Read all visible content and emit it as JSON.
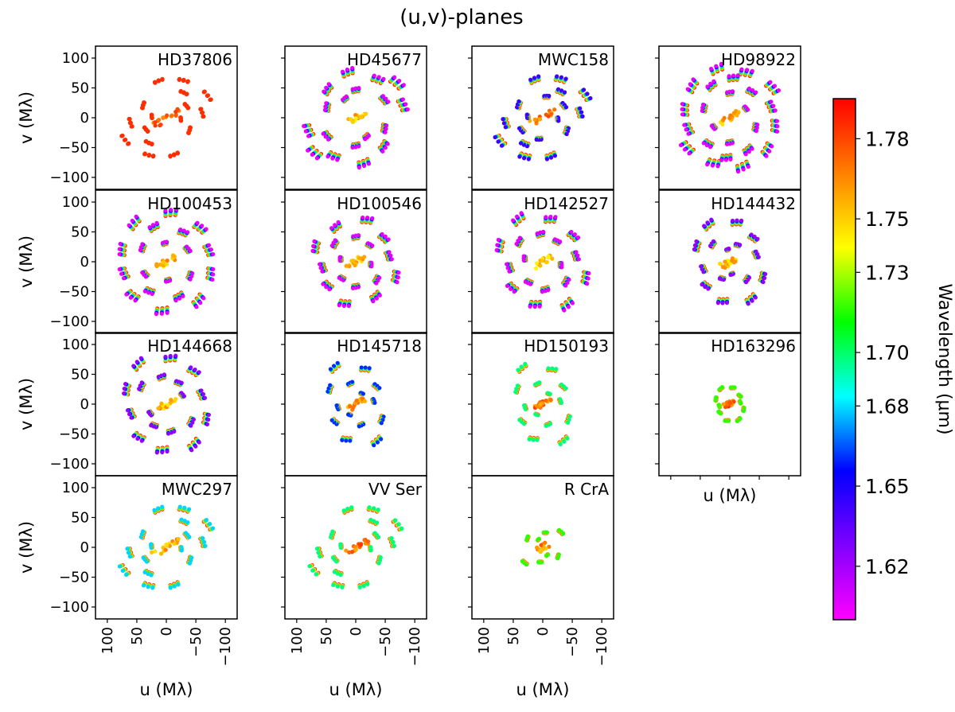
{
  "figure": {
    "title": "(u,v)-planes"
  },
  "chart_data": {
    "type": "scatter",
    "title": "(u,v)-planes",
    "xlabel": "u (Mλ)",
    "ylabel": "v (Mλ)",
    "xlim": [
      120,
      -120
    ],
    "ylim": [
      -120,
      120
    ],
    "xticks": [
      100,
      50,
      0,
      -50,
      -100
    ],
    "yticks": [
      100,
      50,
      0,
      -50,
      -100
    ],
    "tick_labels": [
      "100",
      "50",
      "0",
      "−50",
      "−100"
    ],
    "colorbar": {
      "label": "Wavelength (μm)",
      "range": [
        1.6,
        1.795
      ],
      "ticks": [
        1.62,
        1.65,
        1.68,
        1.7,
        1.73,
        1.75,
        1.78
      ],
      "tick_labels": [
        "1.62",
        "1.65",
        "1.68",
        "1.70",
        "1.73",
        "1.75",
        "1.78"
      ],
      "colormap_stops": [
        "#ff00ff",
        "#8000ff",
        "#0000ff",
        "#00ffff",
        "#00ff00",
        "#ffff00",
        "#ff8000",
        "#ff0000"
      ]
    },
    "panels": [
      {
        "name": "HD37806",
        "arms": [
          [
            45,
            28
          ],
          [
            64,
            78
          ],
          [
            70,
            115
          ],
          [
            40,
            150
          ],
          [
            25,
            185
          ],
          [
            80,
            332
          ],
          [
            52,
            305
          ],
          [
            62,
            352
          ]
        ],
        "radial": 58,
        "wl_spread": 0.2,
        "base_wl": 1.785
      },
      {
        "name": "HD45677",
        "arms": [
          [
            50,
            20
          ],
          [
            65,
            45
          ],
          [
            75,
            80
          ],
          [
            72,
            120
          ],
          [
            80,
            165
          ],
          [
            55,
            148
          ],
          [
            88,
            140
          ],
          [
            45,
            90
          ],
          [
            35,
            60
          ]
        ],
        "radial": 40,
        "wl_spread": 1.0,
        "base_wl": 1.77
      },
      {
        "name": "MWC158",
        "arms": [
          [
            45,
            28
          ],
          [
            64,
            78
          ],
          [
            70,
            115
          ],
          [
            40,
            150
          ],
          [
            25,
            185
          ],
          [
            80,
            332
          ],
          [
            52,
            305
          ],
          [
            62,
            352
          ],
          [
            35,
            100
          ]
        ],
        "radial": 55,
        "wl_spread": 0.8,
        "base_wl": 1.78
      },
      {
        "name": "HD98922",
        "arms": [
          [
            75,
            10
          ],
          [
            80,
            40
          ],
          [
            82,
            75
          ],
          [
            78,
            110
          ],
          [
            85,
            145
          ],
          [
            70,
            165
          ],
          [
            60,
            60
          ],
          [
            55,
            130
          ],
          [
            45,
            20
          ],
          [
            40,
            90
          ],
          [
            30,
            150
          ],
          [
            65,
            95
          ]
        ],
        "radial": 40,
        "wl_spread": 1.0,
        "base_wl": 1.77
      },
      {
        "name": "HD100453",
        "arms": [
          [
            75,
            15
          ],
          [
            82,
            50
          ],
          [
            80,
            95
          ],
          [
            78,
            135
          ],
          [
            72,
            165
          ],
          [
            60,
            70
          ],
          [
            55,
            120
          ],
          [
            45,
            30
          ],
          [
            40,
            150
          ],
          [
            30,
            85
          ]
        ],
        "radial": 40,
        "wl_spread": 1.0,
        "base_wl": 1.77
      },
      {
        "name": "HD100546",
        "arms": [
          [
            70,
            20
          ],
          [
            65,
            60
          ],
          [
            70,
            105
          ],
          [
            60,
            140
          ],
          [
            55,
            170
          ],
          [
            45,
            40
          ],
          [
            40,
            90
          ],
          [
            35,
            130
          ],
          [
            25,
            10
          ]
        ],
        "radial": 40,
        "wl_spread": 1.0,
        "base_wl": 1.77
      },
      {
        "name": "HD142527",
        "arms": [
          [
            75,
            20
          ],
          [
            80,
            60
          ],
          [
            70,
            100
          ],
          [
            65,
            140
          ],
          [
            55,
            170
          ],
          [
            50,
            40
          ],
          [
            45,
            85
          ],
          [
            40,
            125
          ],
          [
            30,
            10
          ]
        ],
        "radial": 40,
        "wl_spread": 1.0,
        "base_wl": 1.77
      },
      {
        "name": "HD144432",
        "arms": [
          [
            60,
            25
          ],
          [
            70,
            60
          ],
          [
            65,
            100
          ],
          [
            55,
            135
          ],
          [
            45,
            165
          ],
          [
            40,
            45
          ],
          [
            30,
            115
          ],
          [
            20,
            80
          ]
        ],
        "radial": 40,
        "wl_spread": 0.9,
        "base_wl": 1.77
      },
      {
        "name": "HD144668",
        "arms": [
          [
            70,
            20
          ],
          [
            80,
            55
          ],
          [
            75,
            95
          ],
          [
            70,
            130
          ],
          [
            60,
            165
          ],
          [
            50,
            35
          ],
          [
            45,
            80
          ],
          [
            40,
            120
          ],
          [
            30,
            150
          ]
        ],
        "radial": 40,
        "wl_spread": 0.9,
        "base_wl": 1.77
      },
      {
        "name": "HD145718",
        "arms": [
          [
            50,
            30
          ],
          [
            70,
            60
          ],
          [
            60,
            105
          ],
          [
            45,
            140
          ],
          [
            30,
            170
          ],
          [
            35,
            75
          ],
          [
            20,
            120
          ]
        ],
        "radial": 35,
        "wl_spread": 0.7,
        "base_wl": 1.775
      },
      {
        "name": "HD150193",
        "arms": [
          [
            50,
            30
          ],
          [
            70,
            60
          ],
          [
            60,
            105
          ],
          [
            45,
            140
          ],
          [
            30,
            170
          ],
          [
            35,
            75
          ],
          [
            20,
            120
          ]
        ],
        "radial": 35,
        "wl_spread": 0.5,
        "base_wl": 1.785
      },
      {
        "name": "HD163296",
        "arms": [
          [
            25,
            20
          ],
          [
            30,
            60
          ],
          [
            28,
            100
          ],
          [
            22,
            140
          ],
          [
            18,
            170
          ]
        ],
        "radial": 20,
        "wl_spread": 0.4,
        "base_wl": 1.785
      },
      {
        "name": "MWC297",
        "arms": [
          [
            45,
            28
          ],
          [
            64,
            78
          ],
          [
            70,
            115
          ],
          [
            40,
            150
          ],
          [
            25,
            185
          ],
          [
            80,
            332
          ],
          [
            52,
            305
          ],
          [
            62,
            352
          ]
        ],
        "radial": 58,
        "wl_spread": 0.6,
        "base_wl": 1.775
      },
      {
        "name": "VV Ser",
        "arms": [
          [
            45,
            28
          ],
          [
            64,
            78
          ],
          [
            70,
            115
          ],
          [
            40,
            150
          ],
          [
            25,
            185
          ],
          [
            80,
            332
          ],
          [
            52,
            305
          ],
          [
            62,
            352
          ]
        ],
        "radial": 50,
        "wl_spread": 0.5,
        "base_wl": 1.785
      },
      {
        "name": "R CrA",
        "arms": [
          [
            30,
            30
          ],
          [
            40,
            140
          ],
          [
            25,
            100
          ],
          [
            15,
            60
          ]
        ],
        "radial": 20,
        "wl_spread": 0.4,
        "base_wl": 1.78
      }
    ]
  }
}
